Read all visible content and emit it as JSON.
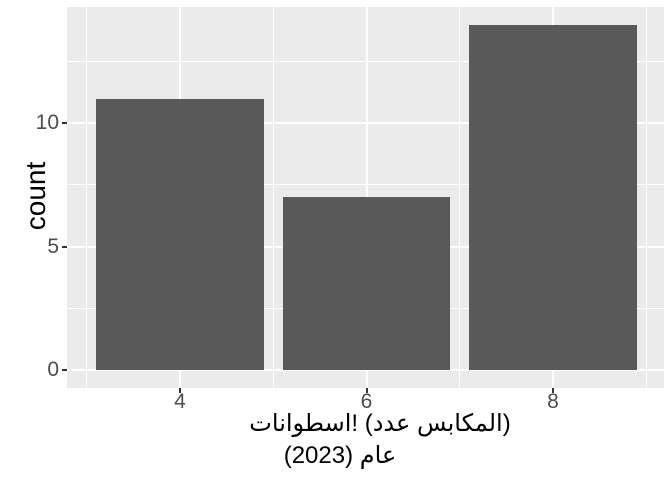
{
  "chart_data": {
    "type": "bar",
    "title": "",
    "categories": [
      4,
      6,
      8
    ],
    "values": [
      11,
      7,
      14
    ],
    "ylabel": "count",
    "xlabel_line1": "اسطوانات‎! (عدد‎ المكابس‎)",
    "xlabel_line2": "(2023)‎ عام",
    "x_ticks": [
      4,
      6,
      8
    ],
    "y_ticks": [
      0,
      5,
      10
    ],
    "x_minor_ticks": [
      3,
      5,
      7,
      9
    ],
    "y_minor_ticks": [
      2.5,
      7.5,
      12.5
    ],
    "xlim": [
      2.788,
      9.19
    ],
    "ylim": [
      -0.709,
      14.715
    ],
    "bar_width": 1.8,
    "grid": true,
    "legend": "none",
    "colors": {
      "bar": "#595959",
      "panel_bg": "#EBEBEB",
      "grid": "#FFFFFF",
      "tick_mark": "#333333",
      "tick_text": "#4D4D4D",
      "title_text": "#000000",
      "page_bg": "#FFFFFF"
    }
  }
}
